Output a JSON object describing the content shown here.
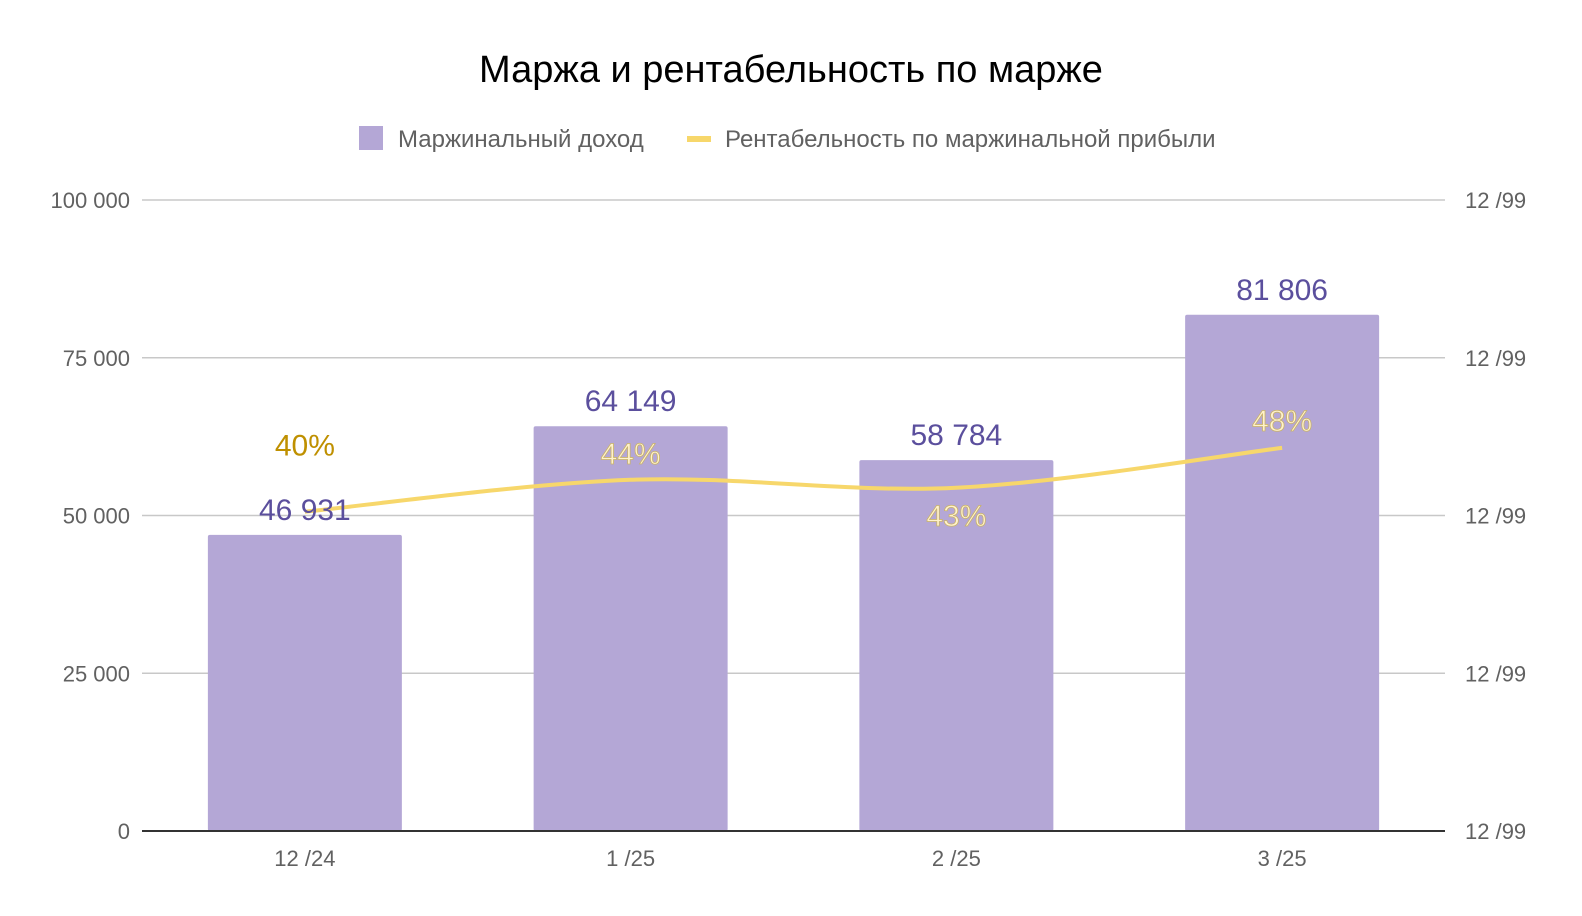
{
  "chart_data": {
    "type": "bar",
    "title": "Маржа и рентабельность по марже",
    "categories": [
      "12 /24",
      "1 /25",
      "2 /25",
      "3 /25"
    ],
    "series": [
      {
        "name": "Маржинальный доход",
        "type": "bar",
        "axis": "left",
        "values": [
          46931,
          64149,
          58784,
          81806
        ],
        "labels": [
          "46 931",
          "64 149",
          "58 784",
          "81 806"
        ],
        "color": "#b4a7d6",
        "label_color": "#5b4f9d"
      },
      {
        "name": "Рентабельность по маржинальной прибыли",
        "type": "line",
        "axis": "right",
        "values": [
          40,
          44,
          43,
          48
        ],
        "labels": [
          "40%",
          "44%",
          "43%",
          "48%"
        ],
        "color": "#f7d76b",
        "label_color_first": "#bf9000",
        "label_color": "#fff2cc"
      }
    ],
    "y_left": {
      "ylim": [
        0,
        100000
      ],
      "ticks": [
        0,
        25000,
        50000,
        75000,
        100000
      ],
      "tick_labels": [
        "0",
        "25 000",
        "50 000",
        "75 000",
        "100 000"
      ]
    },
    "y_right": {
      "tick_labels": [
        "12 /99",
        "12 /99",
        "12 /99",
        "12 /99",
        "12 /99"
      ]
    },
    "legend_position": "top",
    "grid": true,
    "colors": {
      "gridline": "#c8c8c8",
      "baseline": "#333333",
      "tick_text": "#616161",
      "title_text": "#000000"
    }
  }
}
